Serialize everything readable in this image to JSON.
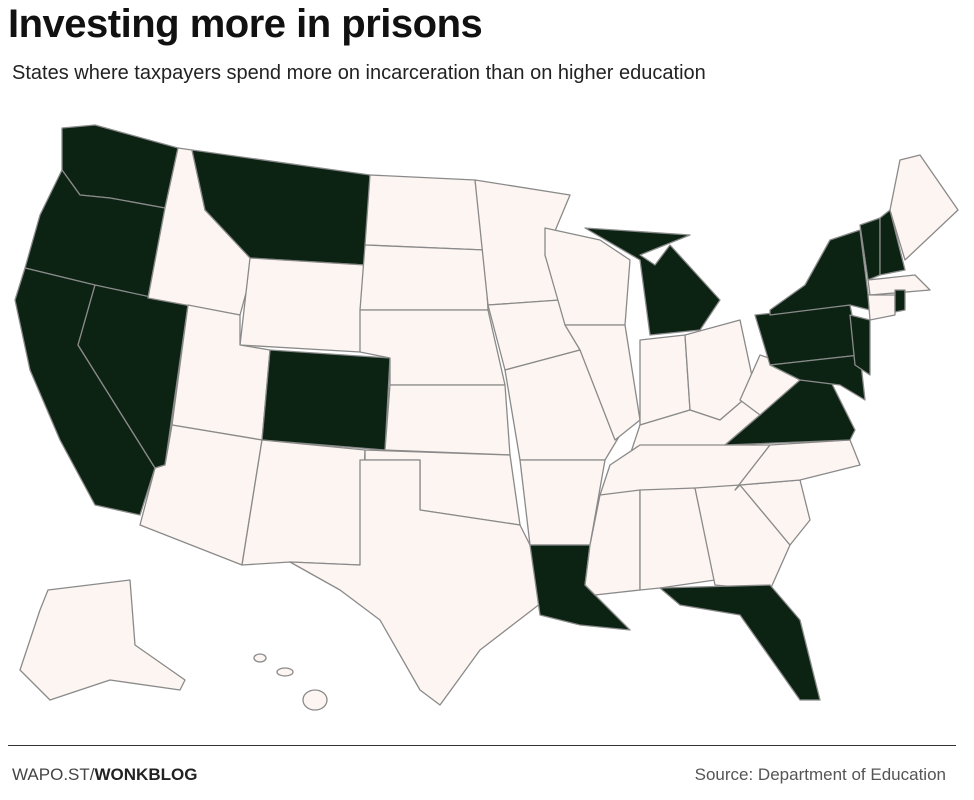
{
  "header": {
    "title": "Investing more in prisons",
    "subtitle": "States where taxpayers spend more on incarceration than on higher education"
  },
  "footer": {
    "credit_prefix": "WAPO.ST/",
    "credit_bold": "WONKBLOG",
    "source": "Source: Department of Education"
  }
}
